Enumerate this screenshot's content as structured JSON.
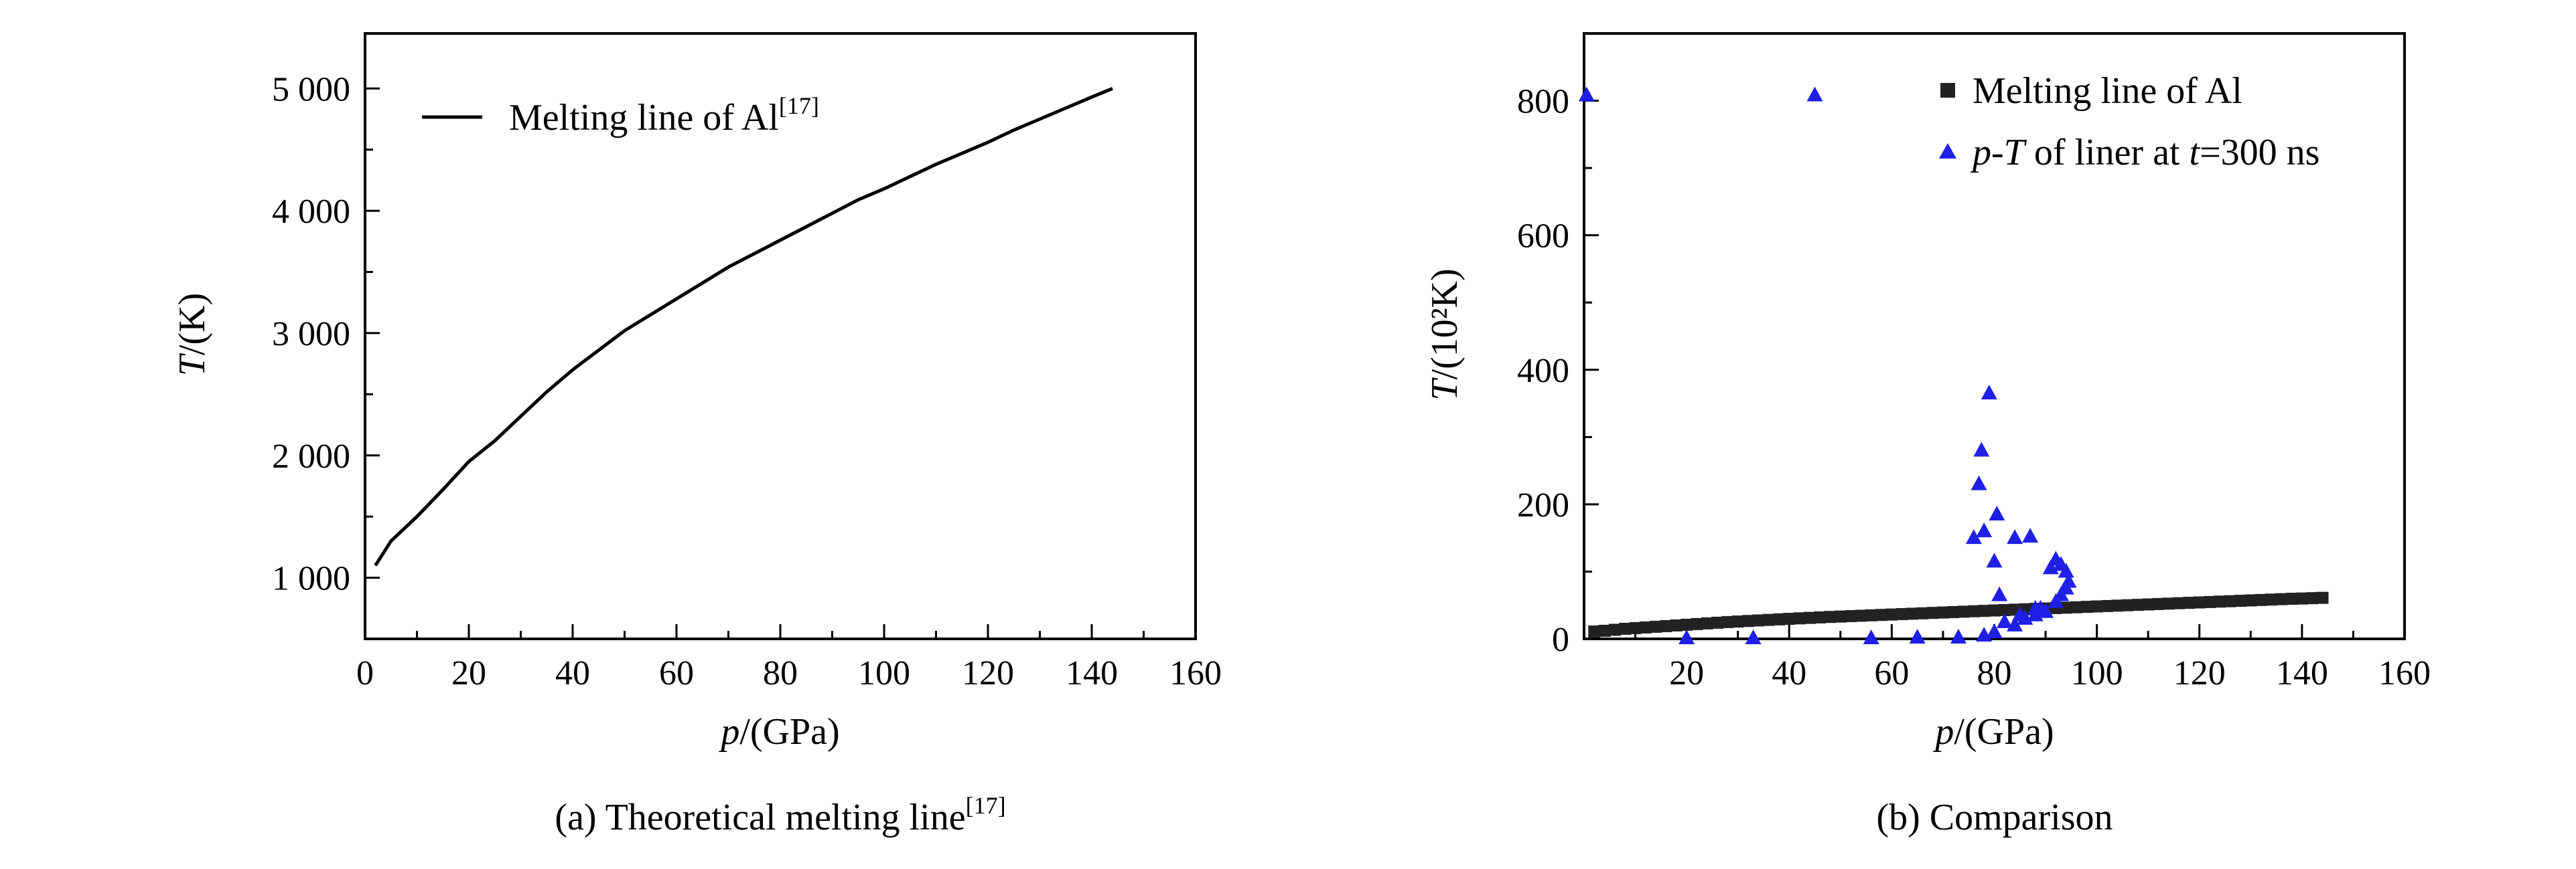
{
  "chart_data": [
    {
      "id": "a",
      "type": "line",
      "caption": "(a) Theoretical melting line",
      "caption_ref": "[17]",
      "xlabel_italic": "p",
      "xlabel_rest": "/(GPa)",
      "ylabel_italic": "T",
      "ylabel_rest": "/(K)",
      "xlim": [
        0,
        160
      ],
      "ylim": [
        500,
        5450
      ],
      "x_ticks": [
        0,
        20,
        40,
        60,
        80,
        100,
        120,
        140,
        160
      ],
      "x_tick_labels": [
        "0",
        "20",
        "40",
        "60",
        "80",
        "100",
        "120",
        "140",
        "160"
      ],
      "y_ticks": [
        1000,
        2000,
        3000,
        4000,
        5000
      ],
      "y_tick_labels": [
        "1 000",
        "2 000",
        "3 000",
        "4 000",
        "5 000"
      ],
      "legend": {
        "position": "top-left",
        "label": "Melting line of Al",
        "label_ref": "[17]"
      },
      "series": [
        {
          "name": "Melting line of Al",
          "color": "#000000",
          "x": [
            2,
            5,
            10,
            15,
            20,
            25,
            30,
            35,
            40,
            45,
            50,
            55,
            60,
            65,
            70,
            75,
            80,
            85,
            90,
            95,
            100,
            105,
            110,
            115,
            120,
            125,
            130,
            135,
            140,
            144
          ],
          "y": [
            1100,
            1300,
            1500,
            1720,
            1950,
            2120,
            2320,
            2520,
            2700,
            2860,
            3020,
            3150,
            3280,
            3410,
            3540,
            3650,
            3760,
            3870,
            3980,
            4090,
            4180,
            4280,
            4380,
            4470,
            4560,
            4660,
            4750,
            4840,
            4930,
            5000
          ]
        }
      ]
    },
    {
      "id": "b",
      "type": "scatter",
      "caption": "(b) Comparison",
      "xlabel_italic": "p",
      "xlabel_rest": "/(GPa)",
      "ylabel_italic": "T",
      "ylabel_rest": "/(10²K)",
      "xlim": [
        0,
        160
      ],
      "ylim": [
        0,
        900
      ],
      "x_ticks": [
        20,
        40,
        60,
        80,
        100,
        120,
        140,
        160
      ],
      "x_tick_labels": [
        "20",
        "40",
        "60",
        "80",
        "100",
        "120",
        "140",
        "160"
      ],
      "y_ticks": [
        0,
        200,
        400,
        600,
        800
      ],
      "y_tick_labels": [
        "0",
        "200",
        "400",
        "600",
        "800"
      ],
      "legend": {
        "position": "top-right",
        "entries": [
          {
            "label": "Melting line of Al",
            "marker": "square",
            "color": "#222222"
          },
          {
            "label_p": "p",
            "label_dash": "-",
            "label_T": "T",
            "label_mid": " of liner at ",
            "label_t": "t",
            "label_end": "=300 ns",
            "marker": "triangle",
            "color": "#1f1fe6"
          }
        ]
      },
      "series": [
        {
          "name": "Melting line of Al",
          "marker": "square",
          "color": "#222222",
          "x": [
            2,
            4,
            6,
            8,
            10,
            12,
            14,
            16,
            18,
            20,
            22,
            24,
            26,
            28,
            30,
            32,
            34,
            36,
            38,
            40,
            42,
            44,
            46,
            48,
            50,
            52,
            54,
            56,
            58,
            60,
            62,
            64,
            66,
            68,
            70,
            72,
            74,
            76,
            78,
            80,
            82,
            84,
            86,
            88,
            90,
            92,
            94,
            96,
            98,
            100,
            102,
            104,
            106,
            108,
            110,
            112,
            114,
            116,
            118,
            120,
            122,
            124,
            126,
            128,
            130,
            132,
            134,
            136,
            138,
            140,
            142,
            144
          ],
          "y": [
            11,
            12,
            13.5,
            15,
            16,
            17,
            18,
            19,
            20,
            21,
            22,
            23,
            24,
            25,
            25.8,
            26.6,
            27.4,
            28.2,
            29,
            29.8,
            30.5,
            31.2,
            31.9,
            32.6,
            33.2,
            33.8,
            34.4,
            35,
            35.6,
            36.2,
            36.8,
            37.4,
            38,
            38.6,
            39.2,
            39.8,
            40.4,
            41,
            41.6,
            42.2,
            42.8,
            43.4,
            44,
            44.6,
            45.2,
            45.8,
            46.4,
            47,
            47.6,
            48.2,
            48.8,
            49.4,
            50,
            50.6,
            51.2,
            51.8,
            52.4,
            53,
            53.6,
            54.2,
            54.8,
            55.4,
            56,
            56.6,
            57.2,
            57.8,
            58.4,
            59,
            59.6,
            60,
            60.5,
            61
          ]
        },
        {
          "name": "p-T of liner at t=300 ns",
          "marker": "triangle",
          "color": "#1f1fe6",
          "x": [
            0.5,
            20,
            33,
            45,
            56,
            65,
            73,
            76,
            77,
            77.5,
            78,
            79,
            80,
            80.5,
            81,
            84,
            87,
            84,
            86,
            88,
            90,
            92,
            93,
            94,
            94.5,
            94,
            93,
            92,
            91,
            89,
            80,
            78,
            82,
            85,
            88
          ],
          "y": [
            808,
            1,
            1,
            808,
            1,
            2,
            2,
            150,
            230,
            280,
            160,
            365,
            115,
            185,
            65,
            150,
            152,
            20,
            30,
            35,
            40,
            55,
            65,
            75,
            85,
            100,
            110,
            118,
            105,
            45,
            10,
            5,
            25,
            35,
            45
          ]
        }
      ]
    }
  ]
}
